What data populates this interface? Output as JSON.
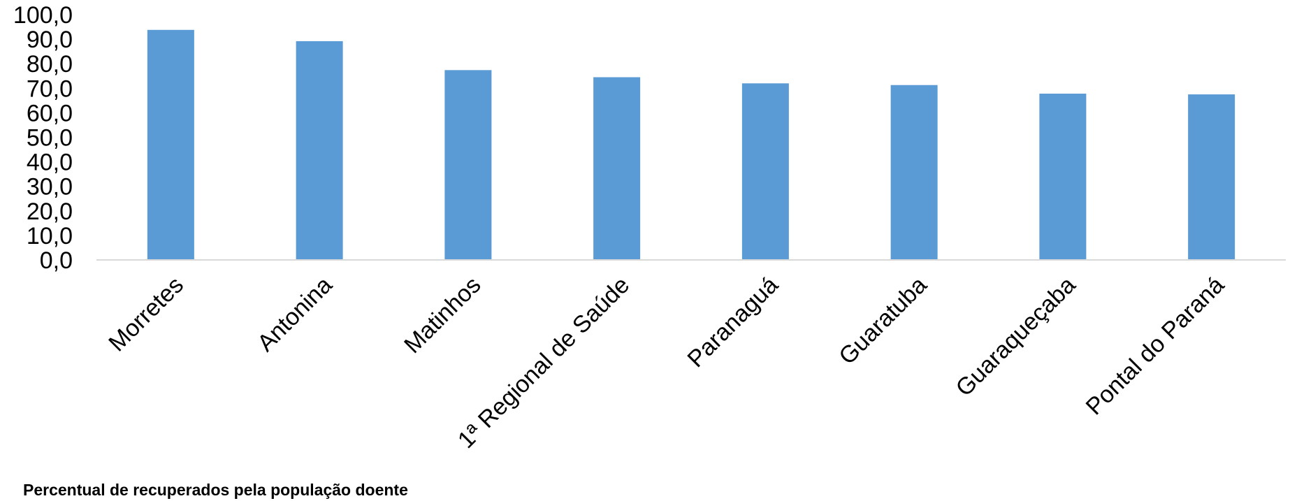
{
  "chart_data": {
    "type": "bar",
    "categories": [
      "Morretes",
      "Antonina",
      "Matinhos",
      "1ª Regional de Saúde",
      "Paranaguá",
      "Guaratuba",
      "Guaraqueçaba",
      "Pontal do Paraná"
    ],
    "series": [
      {
        "name": "Percentual de recuperados pela população doente",
        "values": [
          93.8,
          89.2,
          77.4,
          74.5,
          72.0,
          71.3,
          67.8,
          67.5
        ],
        "color": "#5B9BD5"
      }
    ],
    "yticks": [
      "0,0",
      "10,0",
      "20,0",
      "30,0",
      "40,0",
      "50,0",
      "60,0",
      "70,0",
      "80,0",
      "90,0",
      "100,0"
    ],
    "ylim": [
      0,
      100
    ],
    "grid": false,
    "legend_position": "bottom-left"
  }
}
